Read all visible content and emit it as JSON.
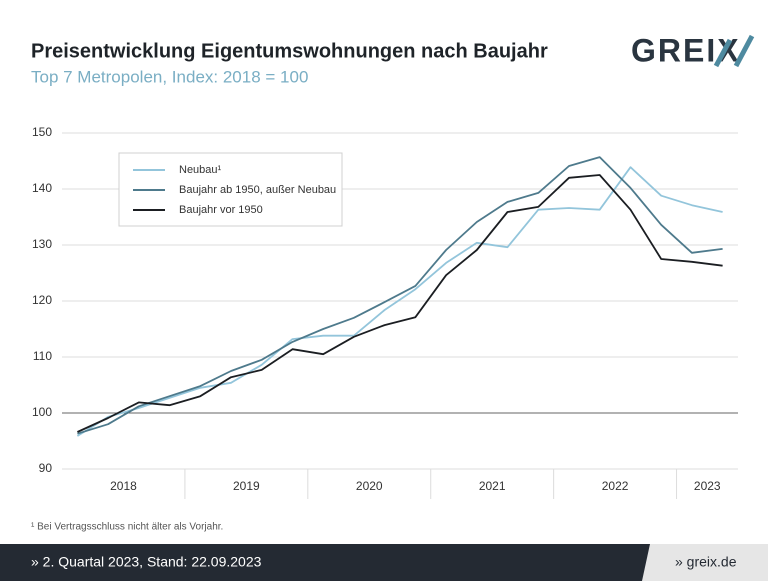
{
  "brand": "GREIX",
  "footnote": "¹ Bei Vertragsschluss nicht älter als Vorjahr.",
  "footer": {
    "left": "» 2. Quartal 2023, Stand: 22.09.2023",
    "right": "» greix.de"
  },
  "chart_data": {
    "type": "line",
    "title": "Preisentwicklung Eigentumswohnungen nach Baujahr",
    "subtitle": "Top 7 Metropolen, Index: 2018 = 100",
    "categories": [
      "2018",
      null,
      null,
      null,
      "2019",
      null,
      null,
      null,
      "2020",
      null,
      null,
      null,
      "2021",
      null,
      null,
      null,
      "2022",
      null,
      null,
      null,
      "2023",
      null
    ],
    "series": [
      {
        "name": "Neubau¹",
        "color": "#93c5db",
        "values": [
          95.9,
          99.3,
          100.9,
          102.7,
          104.5,
          105.4,
          108.6,
          113.2,
          113.8,
          113.8,
          118.4,
          122.1,
          126.8,
          130.4,
          129.6,
          136.3,
          136.6,
          136.3,
          143.9,
          138.8,
          137.1,
          135.9
        ]
      },
      {
        "name": "Baujahr ab 1950, außer Neubau",
        "color": "#4e7a8c",
        "values": [
          96.3,
          98.0,
          101.2,
          103.0,
          104.8,
          107.5,
          109.5,
          112.7,
          115.0,
          117.0,
          119.8,
          122.7,
          129.1,
          134.1,
          137.7,
          139.3,
          144.1,
          145.7,
          140.2,
          133.6,
          128.6,
          129.3
        ]
      },
      {
        "name": "Baujahr vor 1950",
        "color": "#1b1e22",
        "values": [
          96.6,
          99.1,
          101.9,
          101.4,
          103.0,
          106.4,
          107.7,
          111.4,
          110.5,
          113.6,
          115.7,
          117.1,
          124.6,
          129.1,
          135.9,
          136.8,
          142.0,
          142.5,
          136.3,
          127.5,
          127.0,
          126.3
        ]
      }
    ],
    "ylim": [
      90,
      150
    ],
    "yticks": [
      90,
      100,
      110,
      120,
      130,
      140,
      150
    ],
    "baseline": 100,
    "grid": true,
    "legend": "upper-left"
  }
}
